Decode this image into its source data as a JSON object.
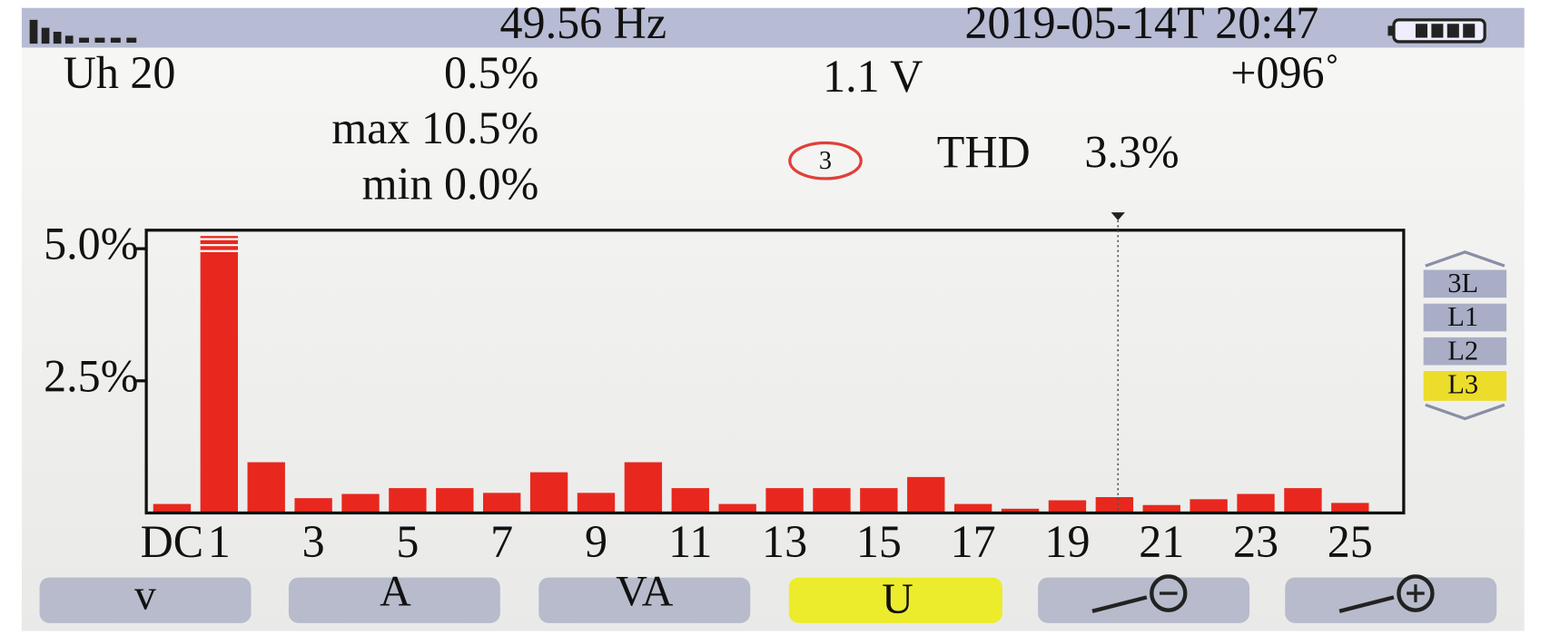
{
  "status_bar": {
    "frequency": "49.56 Hz",
    "datetime": "2019-05-14T 20:47"
  },
  "readout": {
    "label": "Uh 20",
    "percent": "0.5%",
    "voltage": "1.1 V",
    "angle": "+096˚",
    "max": "max 10.5%",
    "min": "min 0.0%",
    "phase": "3",
    "thd_label": "THD",
    "thd_value": "3.3%"
  },
  "phase_selector": [
    "3L",
    "L1",
    "L2",
    "L3"
  ],
  "function_keys": [
    "v",
    "A",
    "VA",
    "U"
  ],
  "chart_data": {
    "type": "bar",
    "categories": [
      "DC",
      "1",
      null,
      "3",
      null,
      "5",
      null,
      "7",
      null,
      "9",
      null,
      "11",
      null,
      "13",
      null,
      "15",
      null,
      "17",
      null,
      "19",
      null,
      "21",
      null,
      "23",
      null,
      "25"
    ],
    "values": [
      0.17,
      5.24,
      0.96,
      0.28,
      0.36,
      0.47,
      0.47,
      0.38,
      0.77,
      0.38,
      0.96,
      0.47,
      0.17,
      0.47,
      0.47,
      0.47,
      0.68,
      0.17,
      0.08,
      0.24,
      0.3,
      0.15,
      0.26,
      0.36,
      0.47,
      0.19
    ],
    "color": "#e8281e",
    "ylim": [
      0,
      5.35
    ],
    "yticks": [
      {
        "value": 2.5,
        "label": "2.5%"
      },
      {
        "value": 5,
        "label": "5.0%"
      }
    ]
  }
}
